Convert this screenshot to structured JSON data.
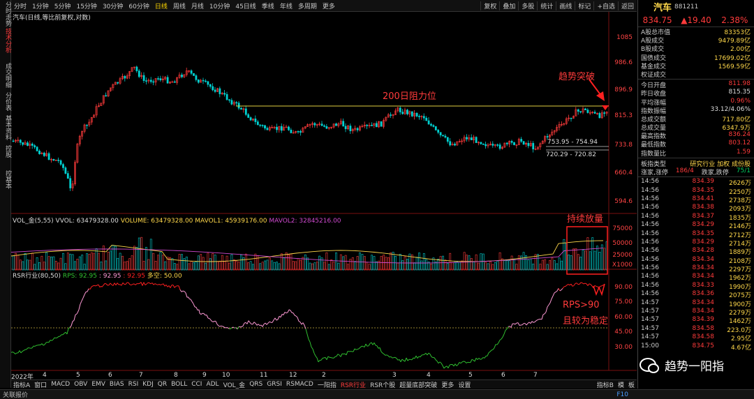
{
  "left_tabs": [
    {
      "label": "分时走势",
      "active": false
    },
    {
      "label": "技术分析",
      "active": true
    },
    {
      "label": "成交明细",
      "active": false
    },
    {
      "label": "分价表",
      "active": false
    },
    {
      "label": "基本资料",
      "active": false
    },
    {
      "label": "控股",
      "active": false
    },
    {
      "label": "控基本",
      "active": false
    }
  ],
  "toolbar": {
    "periods": [
      "分时",
      "1分钟",
      "5分钟",
      "15分钟",
      "30分钟",
      "60分钟",
      "日线",
      "周线",
      "月线",
      "10分钟",
      "45日线",
      "季线",
      "年线",
      "多周期",
      "更多"
    ],
    "active_period": "日线",
    "right_buttons": [
      "复权",
      "叠加",
      "多股",
      "统计",
      "画线",
      "标记",
      "+自选",
      "返回"
    ]
  },
  "chart": {
    "main_label": "汽车(日线,等比前复权,对数)",
    "price_axis": [
      "1085",
      "986.6",
      "896.9",
      "815.3",
      "733.8",
      "660.4",
      "594.6"
    ],
    "annotations": {
      "resistance": "200日阻力位",
      "breakout": "趋势突破",
      "volume": "持续放量",
      "rps1": "RPS>90",
      "rps2": "且较为稳定"
    },
    "range1": "753.95 - 754.94",
    "range2": "720.29 - 720.82",
    "vol_label": {
      "name": "VOL_金(5,55)",
      "vvol": "VVOL: 63479328.00",
      "volume": "VOLUME: 63479328.00",
      "mavol1": "MAVOL1: 45939176.00",
      "mavol2": "MAVOL2: 32845216.00"
    },
    "vol_axis": [
      "75000",
      "50000",
      "25000",
      "X1000"
    ],
    "rsr_label": {
      "name": "RSR行业(80,50)",
      "rps": "RPS: 92.95",
      "v2": ": 92.95",
      "v3": ": 92.95",
      "duo": "多空: 50.00"
    },
    "rsr_axis": [
      "90.00",
      "75.00",
      "60.00",
      "45.00",
      "30.00"
    ],
    "x_axis": [
      "2022年",
      "4",
      "5",
      "6",
      "7",
      "8",
      "9",
      "10",
      "11",
      "12",
      "2",
      "3",
      "4",
      "5",
      "6",
      "7"
    ],
    "colors": {
      "up": "#ff3b3b",
      "down": "#00d0d0",
      "ma_yellow": "#ffd84a",
      "ma_purple": "#d04ad0",
      "rsr_green": "#30c030",
      "rsr_pink": "#ff9ad6",
      "rsr_red": "#ff2020"
    }
  },
  "indicator_tabs": [
    "指标A",
    "窗口",
    "MACD",
    "OBV",
    "EMV",
    "BIAS",
    "RSI",
    "KDJ",
    "QR",
    "BOLL",
    "CCI",
    "ADL",
    "VOL_金",
    "QRS",
    "GRSI",
    "RSMACD",
    "一阳指",
    "RSR行业",
    "RSR个股",
    "超量底部突破",
    "更多",
    "设置"
  ],
  "active_indicator": "RSR行业",
  "indicator_right": [
    "指标B",
    "模",
    "板"
  ],
  "status": "关联报价",
  "status_right": "F10",
  "quote": {
    "name": "汽车",
    "code": "881211",
    "price": "834.75",
    "change": "▲19.40",
    "pct": "2.38%",
    "stats_a": [
      {
        "k": "A股总市值",
        "v": "83353亿"
      },
      {
        "k": "A股成交",
        "v": "9479.89亿"
      },
      {
        "k": "B股成交",
        "v": "2.00亿"
      },
      {
        "k": "国债成交",
        "v": "17699.02亿"
      },
      {
        "k": "基金成交",
        "v": "1569.59亿"
      },
      {
        "k": "权证成交",
        "v": ""
      }
    ],
    "stats_b": [
      {
        "k": "今日开盘",
        "v": "811.98",
        "c": "red"
      },
      {
        "k": "昨日收盘",
        "v": "815.35",
        "c": ""
      },
      {
        "k": "平均涨幅",
        "v": "0.96%",
        "c": "red"
      },
      {
        "k": "指数振幅",
        "v": "33.12/4.06%",
        "c": ""
      },
      {
        "k": "总成交额",
        "v": "717.80亿",
        "c": "yel"
      },
      {
        "k": "总成交量",
        "v": "6347.9万",
        "c": "yel"
      },
      {
        "k": "最高指数",
        "v": "836.24",
        "c": "red"
      },
      {
        "k": "最低指数",
        "v": "803.12",
        "c": "red"
      },
      {
        "k": "指数量比",
        "v": "1.59",
        "c": "red"
      }
    ],
    "sector_type": {
      "k": "板指类型",
      "v": "研究行业 加权 成份股"
    },
    "ups": {
      "k1": "涨家,涨停",
      "v1": "186/4",
      "k2": "跌家,跌停",
      "v2": "75/1"
    },
    "ticks": [
      [
        "14:56",
        "834.39",
        "2626万"
      ],
      [
        "14:56",
        "834.35",
        "2250万"
      ],
      [
        "14:56",
        "834.41",
        "2738万"
      ],
      [
        "14:56",
        "834.38",
        "2093万"
      ],
      [
        "14:56",
        "834.37",
        "1835万"
      ],
      [
        "14:56",
        "834.29",
        "2146万"
      ],
      [
        "14:56",
        "834.35",
        "2712万"
      ],
      [
        "14:56",
        "834.29",
        "2714万"
      ],
      [
        "14:56",
        "834.28",
        "1889万"
      ],
      [
        "14:56",
        "834.34",
        "2108万"
      ],
      [
        "14:56",
        "834.34",
        "2297万"
      ],
      [
        "14:56",
        "834.34",
        "1962万"
      ],
      [
        "14:56",
        "834.33",
        "1990万"
      ],
      [
        "14:56",
        "834.36",
        "2075万"
      ],
      [
        "14:57",
        "834.34",
        "1900万"
      ],
      [
        "14:57",
        "834.34",
        "2279万"
      ],
      [
        "14:57",
        "834.39",
        "1462万"
      ],
      [
        "14:57",
        "834.58",
        "223.0万"
      ],
      [
        "14:57",
        "834.58",
        "2.95亿"
      ],
      [
        "15:00",
        "834.75",
        "4.67亿"
      ]
    ]
  },
  "watermark": "趋势一阳指"
}
